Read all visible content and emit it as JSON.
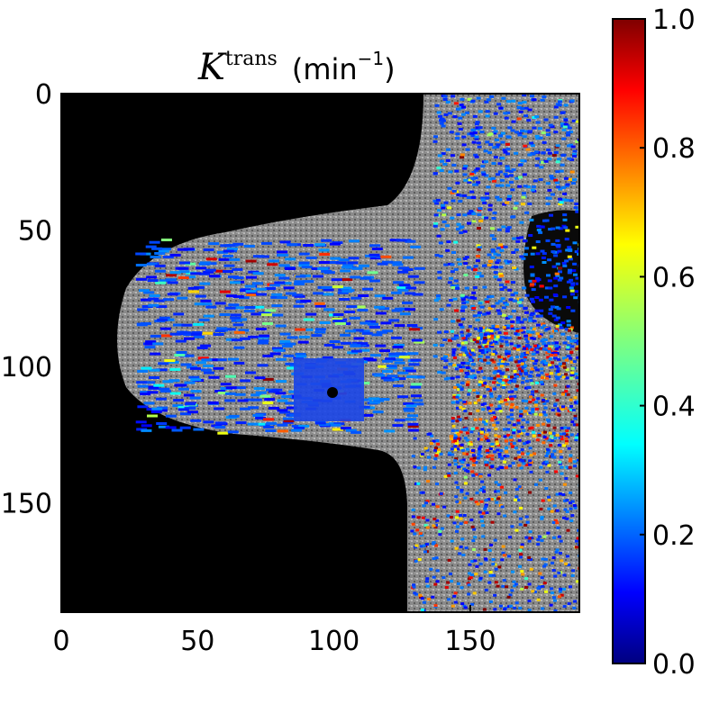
{
  "chart_data": {
    "type": "heatmap",
    "title": {
      "symbol": "K",
      "superscript": "trans",
      "unit_prefix": "(min",
      "unit_exponent": "−1",
      "unit_suffix": ")"
    },
    "xlabel": "",
    "ylabel": "",
    "x_range": [
      0,
      190
    ],
    "y_range": [
      0,
      190
    ],
    "y_inverted": true,
    "x_ticks": [
      0,
      50,
      100,
      150
    ],
    "y_ticks": [
      0,
      50,
      100,
      150
    ],
    "x_tick_labels": [
      "0",
      "50",
      "100",
      "150"
    ],
    "y_tick_labels": [
      "0",
      "50",
      "100",
      "150"
    ],
    "colorbar": {
      "colormap": "jet",
      "range": [
        0.0,
        1.0
      ],
      "ticks": [
        0.0,
        0.2,
        0.4,
        0.6,
        0.8,
        1.0
      ],
      "tick_labels": [
        "0.0",
        "0.2",
        "0.4",
        "0.6",
        "0.8",
        "1.0"
      ],
      "placement": "right"
    },
    "background_colormap": "gray",
    "grid": false,
    "legend": "none"
  }
}
